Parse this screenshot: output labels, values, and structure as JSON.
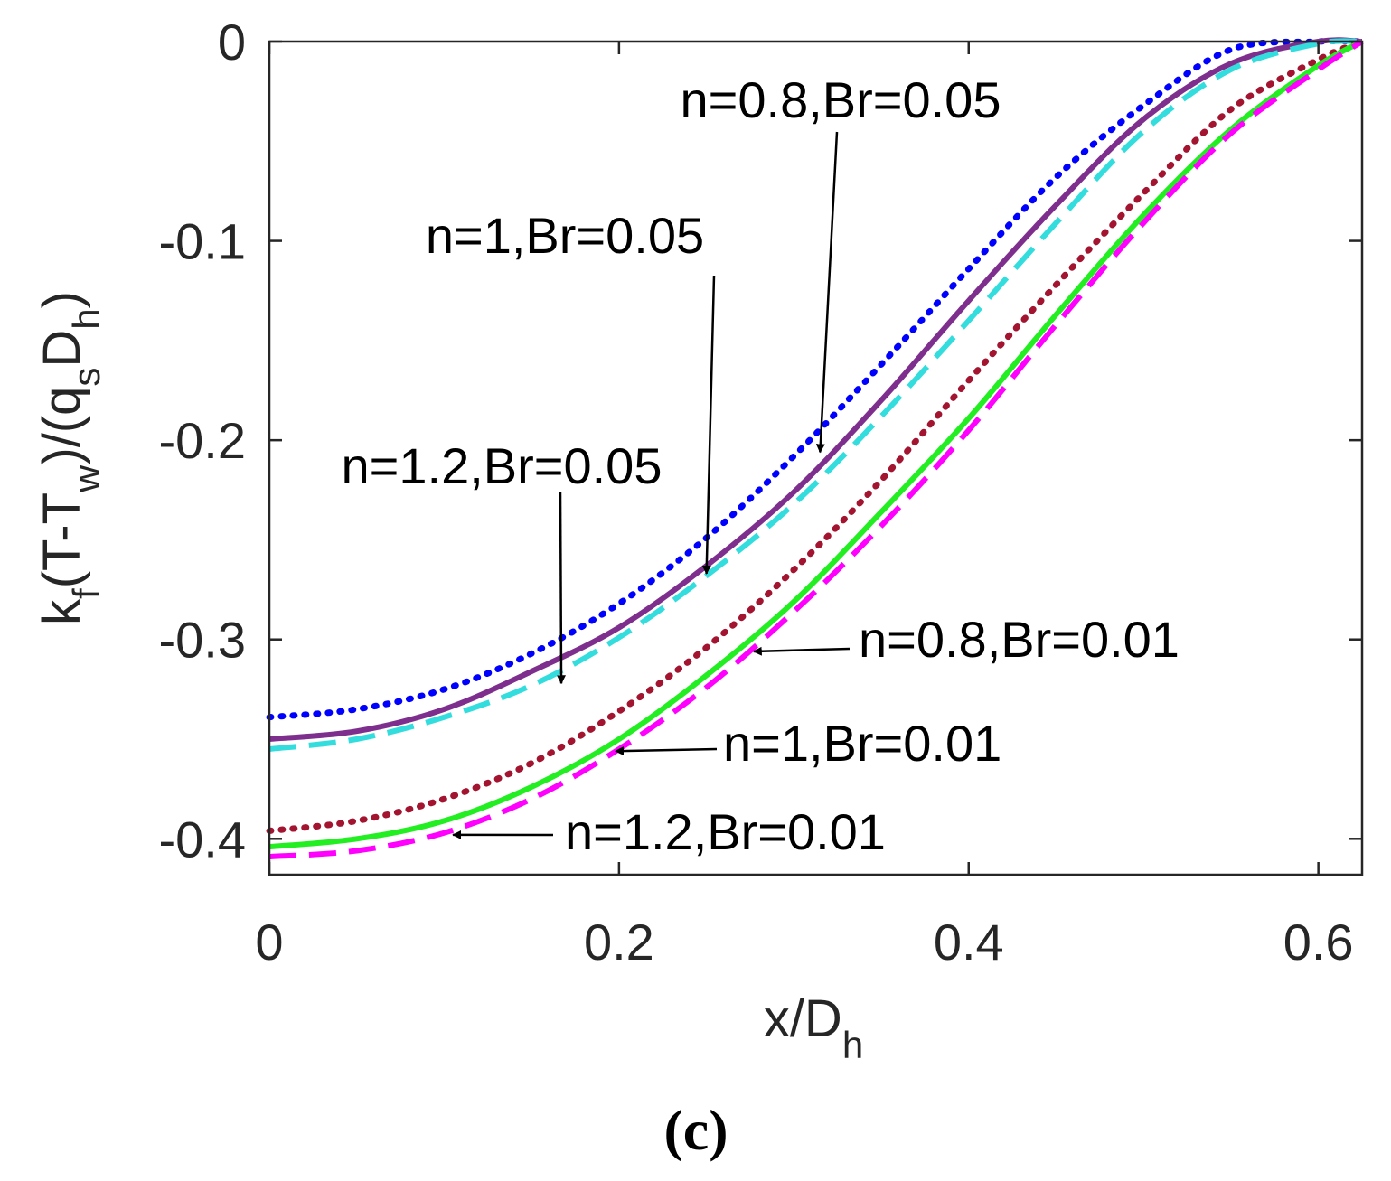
{
  "chart_data": {
    "type": "line",
    "panel_label": "(c)",
    "xlabel": {
      "main": "x/D",
      "sub": "h"
    },
    "ylabel": {
      "parts": [
        {
          "text": "k",
          "sub": false
        },
        {
          "text": "f",
          "sub": true
        },
        {
          "text": "(T-T",
          "sub": false
        },
        {
          "text": "w",
          "sub": true
        },
        {
          "text": ")/(q",
          "sub": false
        },
        {
          "text": "s",
          "sub": true
        },
        {
          "text": "D",
          "sub": false
        },
        {
          "text": "h",
          "sub": true
        },
        {
          "text": ")",
          "sub": false
        }
      ]
    },
    "xlim": [
      0,
      0.625
    ],
    "ylim": [
      -0.418,
      0
    ],
    "xticks": [
      0,
      0.2,
      0.4,
      0.6
    ],
    "xtick_labels": [
      "0",
      "0.2",
      "0.4",
      "0.6"
    ],
    "yticks": [
      0,
      -0.1,
      -0.2,
      -0.3,
      -0.4
    ],
    "ytick_labels": [
      "0",
      "-0.1",
      "-0.2",
      "-0.3",
      "-0.4"
    ],
    "x": [
      0,
      0.05,
      0.1,
      0.15,
      0.2,
      0.25,
      0.3,
      0.35,
      0.4,
      0.45,
      0.5,
      0.55,
      0.6,
      0.625
    ],
    "series": [
      {
        "name": "n=0.8,Br=0.05",
        "color": "#0000ff",
        "style": "dotted",
        "values": [
          -0.339,
          -0.335,
          -0.325,
          -0.307,
          -0.282,
          -0.249,
          -0.208,
          -0.162,
          -0.114,
          -0.068,
          -0.032,
          -0.004,
          0.0,
          0.0
        ]
      },
      {
        "name": "n=1,Br=0.05",
        "color": "#7e2f8e",
        "style": "solid",
        "values": [
          -0.35,
          -0.346,
          -0.335,
          -0.316,
          -0.294,
          -0.263,
          -0.226,
          -0.18,
          -0.13,
          -0.082,
          -0.039,
          -0.011,
          0.0,
          0.0
        ]
      },
      {
        "name": "n=1.2,Br=0.05",
        "color": "#33dddd",
        "style": "dashed",
        "values": [
          -0.355,
          -0.35,
          -0.339,
          -0.323,
          -0.299,
          -0.268,
          -0.232,
          -0.188,
          -0.14,
          -0.091,
          -0.045,
          -0.014,
          -0.001,
          0.0
        ]
      },
      {
        "name": "n=0.8,Br=0.01",
        "color": "#a2142f",
        "style": "dotted",
        "values": [
          -0.396,
          -0.391,
          -0.38,
          -0.362,
          -0.336,
          -0.304,
          -0.265,
          -0.22,
          -0.17,
          -0.122,
          -0.076,
          -0.034,
          -0.009,
          0.0
        ]
      },
      {
        "name": "n=1,Br=0.01",
        "color": "#22ee22",
        "style": "solid",
        "values": [
          -0.404,
          -0.4,
          -0.391,
          -0.374,
          -0.35,
          -0.318,
          -0.281,
          -0.236,
          -0.189,
          -0.137,
          -0.087,
          -0.044,
          -0.012,
          0.0
        ]
      },
      {
        "name": "n=1.2,Br=0.01",
        "color": "#ff00ff",
        "style": "dashed",
        "values": [
          -0.409,
          -0.406,
          -0.397,
          -0.38,
          -0.355,
          -0.324,
          -0.286,
          -0.243,
          -0.195,
          -0.142,
          -0.091,
          -0.046,
          -0.014,
          0.0
        ]
      }
    ],
    "annotations": [
      {
        "text": "n=0.8,Br=0.05",
        "target": [
          0.315,
          -0.206
        ]
      },
      {
        "text": "n=1,Br=0.05",
        "target": [
          0.25,
          -0.267
        ]
      },
      {
        "text": "n=1.2,Br=0.05",
        "target": [
          0.167,
          -0.322
        ]
      },
      {
        "text": "n=0.8,Br=0.01",
        "target": [
          0.277,
          -0.306
        ]
      },
      {
        "text": "n=1,Br=0.01",
        "target": [
          0.198,
          -0.356
        ]
      },
      {
        "text": "n=1.2,Br=0.01",
        "target": [
          0.105,
          -0.398
        ]
      }
    ]
  }
}
